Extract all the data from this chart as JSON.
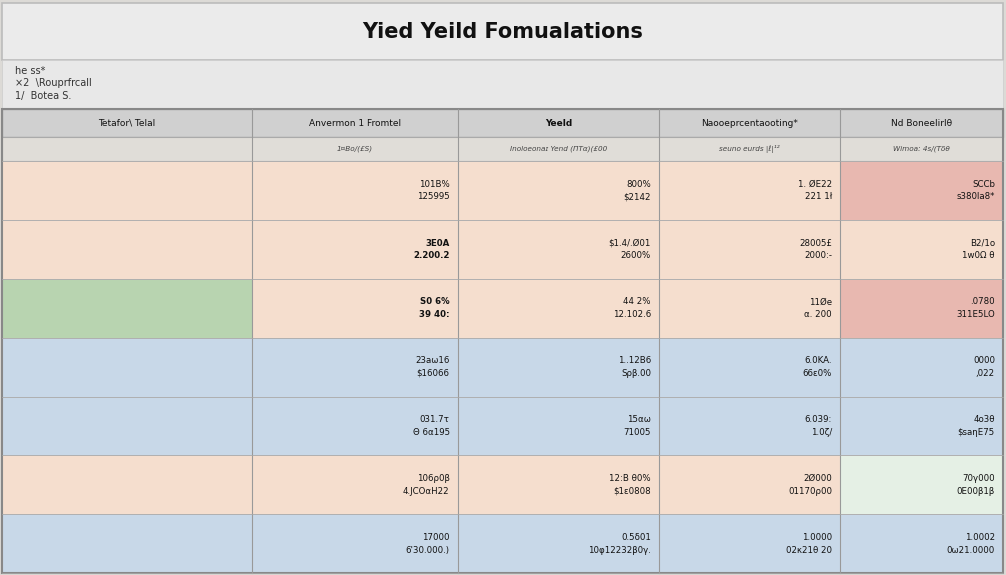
{
  "title": "Yied Yeild Fomualations",
  "notes": [
    "he ss*",
    "×2  \\Rouprfrcall",
    "1/  Botea S."
  ],
  "columns": [
    "Tetafor\\ Telal",
    "Anvermon 1 Fromtel",
    "Yeeld",
    "Naooeprcentaooting*",
    "Nd Boneelirlθ"
  ],
  "subheader_col1": "1¤Bo/(£S)",
  "subheader_col2": "Inoloeonaɪ Yend (ΠTα)(£00",
  "subheader_col3": "seuno eurds |ℓ|¹²",
  "subheader_col4": "Wimoa: 4s/(Tδθ",
  "rows": [
    {
      "col1": "",
      "col2": "101B%\n125995",
      "col3": "800%\n$2142",
      "col4": "1. ØE22\n221 1ł",
      "col5": "SCCb\ns380la8*",
      "row_color": "#f5dece",
      "col1_color": "#f5dece",
      "col5_color": "#e8b8b0"
    },
    {
      "col1": "",
      "col2": "3E0A\n2.200.2",
      "col3": "$1.4/.Ø01\n2600%",
      "col4": "28005£\n2000:-",
      "col5": "B2/1o\n1w0Ω θ",
      "row_color": "#f5dece",
      "col1_color": "#f5dece",
      "col5_color": "#f5dece"
    },
    {
      "col1": "",
      "col2": "S0 6%\n39 40:",
      "col3": "44 2%\n12.102.6",
      "col4": "11Øe\nα. 200",
      "col5": ".0780\n311E5LO",
      "row_color": "#f5dece",
      "col1_color": "#b8d4b0",
      "col5_color": "#e8b8b0"
    },
    {
      "col1": "",
      "col2": "23aω16\n$16066",
      "col3": "1..12B6\nSρβ.00",
      "col4": "6.0KA.\n66ε0%",
      "col5": "0000\n,022",
      "row_color": "#c8d8e8",
      "col1_color": "#c8d8e8",
      "col5_color": "#c8d8e8"
    },
    {
      "col1": "",
      "col2": "031.7τ\nΘ 6α195",
      "col3": "15αω\n71005",
      "col4": "6.039:\n1.0ζ/",
      "col5": "4o3θ\n$saηE75",
      "row_color": "#c8d8e8",
      "col1_color": "#c8d8e8",
      "col5_color": "#c8d8e8"
    },
    {
      "col1": "",
      "col2": "106ρ0β\n4.JCOαΗ22",
      "col3": "12:B θ0%\n$1ε0808",
      "col4": "2Ø000\n01170ρ00",
      "col5": "70γ000\n0Ε00β1β",
      "row_color": "#f5dece",
      "col1_color": "#f5dece",
      "col5_color": "#e5f0e5"
    },
    {
      "col1": "",
      "col2": "17000\n6'30.000.)",
      "col3": "0.5δ01\n10φ12232β0γ.",
      "col4": "1.0000\n02κ21θ 20",
      "col5": "1.0002\n0ω21.0000",
      "row_color": "#c8d8e8",
      "col1_color": "#c8d8e8",
      "col5_color": "#c8d8e8"
    }
  ],
  "title_bg": "#ebebeb",
  "notes_bg": "#e8e8e8",
  "header_bg": "#d0d0d0",
  "subheader_bg": "#e0ddd8",
  "border_color": "#aaaaaa",
  "col_starts": [
    0.02,
    2.5,
    4.55,
    6.55,
    8.35
  ],
  "col_ends": [
    2.5,
    4.55,
    6.55,
    8.35,
    9.97
  ]
}
